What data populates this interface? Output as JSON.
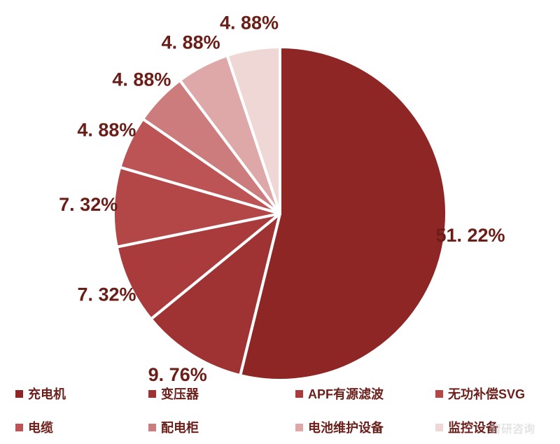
{
  "background": "#ffffff",
  "chart_data": {
    "type": "pie",
    "title": "",
    "direction": "clockwise",
    "start_angle_deg": 0,
    "legend_position": "bottom",
    "label_color": "#6B1E18",
    "slice_gap_color": "#ffffff",
    "series": [
      {
        "name": "充电机",
        "value": 51.22,
        "label": "51. 22%",
        "color": "#8E2626"
      },
      {
        "name": "变压器",
        "value": 9.76,
        "label": "9. 76%",
        "color": "#9F3233"
      },
      {
        "name": "APF有源滤波",
        "value": 7.32,
        "label": "7. 32%",
        "color": "#A93B3C"
      },
      {
        "name": "无功补偿SVG",
        "value": 7.32,
        "label": "7. 32%",
        "color": "#B34748"
      },
      {
        "name": "电缆",
        "value": 4.88,
        "label": "4. 88%",
        "color": "#BC5354"
      },
      {
        "name": "配电柜",
        "value": 4.88,
        "label": "4. 88%",
        "color": "#CC7C7C"
      },
      {
        "name": "电池维护设备",
        "value": 4.88,
        "label": "4. 88%",
        "color": "#DFA8A8"
      },
      {
        "name": "监控设备",
        "value": 4.88,
        "label": "4. 88%",
        "color": "#EFD7D5"
      }
    ]
  },
  "watermark": {
    "text": "智研咨询"
  }
}
